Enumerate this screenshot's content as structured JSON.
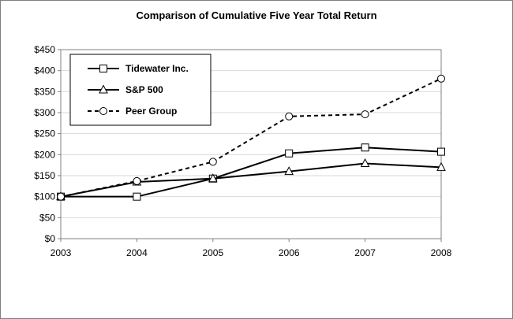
{
  "chart_data": {
    "type": "line",
    "title": "Comparison of Cumulative Five Year Total Return",
    "xlabel": "",
    "ylabel": "",
    "categories": [
      "2003",
      "2004",
      "2005",
      "2006",
      "2007",
      "2008"
    ],
    "ylim": [
      0,
      450
    ],
    "y_ticks": [
      "$0",
      "$50",
      "$100",
      "$150",
      "$200",
      "$250",
      "$300",
      "$350",
      "$400",
      "$450"
    ],
    "grid": true,
    "legend_position": "top-left",
    "series": [
      {
        "name": "Tidewater Inc.",
        "marker": "square",
        "style": "solid",
        "values": [
          100,
          100,
          143,
          203,
          217,
          207
        ]
      },
      {
        "name": "S&P 500",
        "marker": "triangle",
        "style": "solid",
        "values": [
          100,
          135,
          143,
          160,
          179,
          170
        ]
      },
      {
        "name": "Peer Group",
        "marker": "circle",
        "style": "dashed",
        "values": [
          100,
          137,
          183,
          291,
          296,
          381
        ]
      }
    ]
  }
}
